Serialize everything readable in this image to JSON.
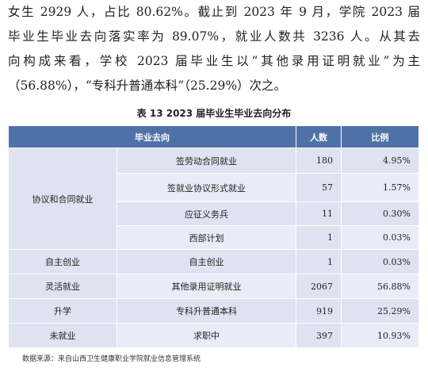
{
  "paragraph": {
    "lines": [
      "女生 2929 人，占比 80.62%。截止到 2023 年 9 月，学院 2023 届",
      "毕业生毕业去向落实率为 89.07%，就业人数共 3236 人。从其去",
      "向构成来看，学校 2023 届毕业生以“其他录用证明就业”为主",
      "（56.88%），“专科升普通本科”（25.29%）次之。"
    ]
  },
  "table": {
    "caption": "表 13   2023 届毕业生毕业去向分布",
    "header": [
      "毕业去向",
      "人数",
      "比例"
    ],
    "groups": [
      {
        "name": "协议和合同就业",
        "rows": [
          [
            "签劳动合同就业",
            "180",
            "4.95%"
          ],
          [
            "签就业协议形式就业",
            "57",
            "1.57%"
          ],
          [
            "应征义务兵",
            "11",
            "0.30%"
          ],
          [
            "西部计划",
            "1",
            "0.03%"
          ]
        ]
      },
      {
        "name": "自主创业",
        "rows": [
          [
            "自主创业",
            "1",
            "0.03%"
          ]
        ]
      },
      {
        "name": "灵活就业",
        "rows": [
          [
            "其他录用证明就业",
            "2067",
            "56.88%"
          ]
        ]
      },
      {
        "name": "升学",
        "rows": [
          [
            "专科升普通本科",
            "919",
            "25.29%"
          ]
        ]
      },
      {
        "name": "未就业",
        "rows": [
          [
            "求职中",
            "397",
            "10.93%"
          ]
        ]
      }
    ],
    "source": "数据来源：来自山西卫生健康职业学院就业信息管理系统"
  }
}
